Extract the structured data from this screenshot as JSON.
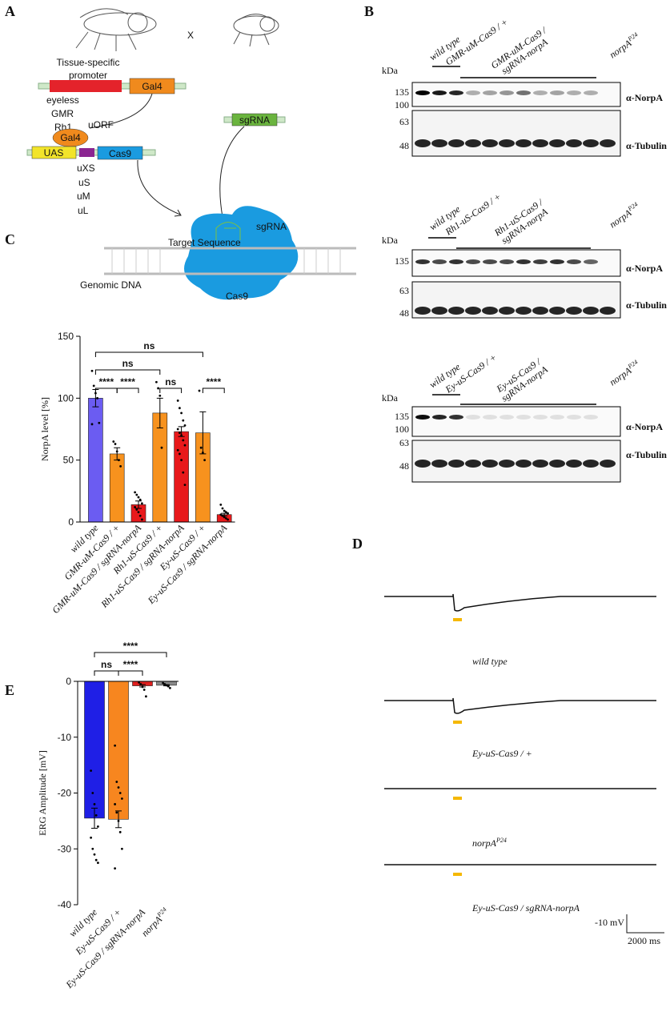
{
  "panels": {
    "a": "A",
    "b": "B",
    "c": "C",
    "d": "D",
    "e": "E"
  },
  "diagram": {
    "cross": "X",
    "promoter": [
      "Tissue-specific",
      "promoter"
    ],
    "gal4_box": "Gal4",
    "drivers": [
      "eyeless",
      "GMR",
      "Rh1"
    ],
    "gal4_protein": "Gal4",
    "uorf": "uORF",
    "uas": "UAS",
    "cas9_box": "Cas9",
    "uorf_sizes": [
      "uXS",
      "uS",
      "uM",
      "uL"
    ],
    "sgrna_box": "sgRNA",
    "sgrna_label": "sgRNA",
    "target": "Target Sequence",
    "genomic": "Genomic DNA",
    "cas9_protein": "Cas9"
  },
  "blots": {
    "kda": "kDa",
    "antibodies": [
      "α-NorpA",
      "α-Tubulin"
    ],
    "panels": [
      {
        "lanes": [
          "wild type",
          "GMR-uM-Cas9 / +",
          [
            "GMR-uM-Cas9 /",
            "sgRNA-norpA"
          ],
          {
            "base": "norpA",
            "sup": "P24"
          }
        ],
        "markers": [
          "135",
          "100",
          "63",
          "48"
        ]
      },
      {
        "lanes": [
          "wild type",
          "Rh1-uS-Cas9 / +",
          [
            "Rh1-uS-Cas9 /",
            "sgRNA-norpA"
          ],
          {
            "base": "norpA",
            "sup": "P24"
          }
        ],
        "markers": [
          "135",
          "63",
          "48"
        ]
      },
      {
        "lanes": [
          "wild type",
          "Ey-uS-Cas9 / +",
          [
            "Ey-uS-Cas9 /",
            "sgRNA-norpA"
          ],
          {
            "base": "norpA",
            "sup": "P24"
          }
        ],
        "markers": [
          "135",
          "100",
          "63",
          "48"
        ]
      }
    ]
  },
  "erg_traces": {
    "labels": [
      "wild type",
      "Ey-uS-Cas9 / +",
      {
        "base": "norpA",
        "sup": "P24"
      },
      "Ey-uS-Cas9 / sgRNA-norpA"
    ],
    "scale_mv": "-10 mV",
    "scale_ms": "2000 ms"
  },
  "chart_data": [
    {
      "type": "bar",
      "y_label": "NorpA level [%]",
      "categories": [
        "wild type",
        "GMR-uM-Cas9 / +",
        "GMR-uM-Cas9 / sgRNA-norpA",
        "Rh1-uS-Cas9 / +",
        "Rh1-uS-Cas9 / sgRNA-norpA",
        "Ey-uS-Cas9 / +",
        "Ey-uS-Cas9 / sgRNA-norpA"
      ],
      "values": [
        100,
        55,
        14,
        88,
        73,
        72,
        6
      ],
      "errors": [
        7,
        5,
        3,
        12,
        4,
        17,
        1
      ],
      "points": [
        [
          122,
          110,
          104,
          100,
          80,
          79
        ],
        [
          65,
          63,
          57,
          50,
          45
        ],
        [
          24,
          22,
          20,
          18,
          15,
          12,
          10,
          8,
          5,
          2
        ],
        [
          113,
          108,
          102,
          60
        ],
        [
          98,
          92,
          88,
          82,
          78,
          75,
          72,
          70,
          66,
          62,
          58,
          55,
          50,
          40,
          30
        ],
        [
          106,
          60,
          56,
          50
        ],
        [
          14,
          11,
          9,
          8,
          7,
          6,
          5,
          4,
          3,
          2
        ]
      ],
      "colors": [
        "#6b5cf2",
        "#f7921e",
        "#e8191b",
        "#f7921e",
        "#e8191b",
        "#f7921e",
        "#e8191b"
      ],
      "ylim": [
        0,
        150
      ],
      "yticks": [
        0,
        50,
        100,
        150
      ],
      "annotations": [
        "****",
        "****",
        "ns",
        "****",
        "ns",
        "ns"
      ]
    },
    {
      "type": "bar",
      "y_label": "ERG Amplitude [mV]",
      "categories": [
        "wild type",
        "Ey-uS-Cas9 / +",
        "Ey-uS-Cas9 / sgRNA-norpA",
        {
          "base": "norpA",
          "sup": "P24"
        }
      ],
      "values": [
        -24.5,
        -24.7,
        -0.8,
        -0.7
      ],
      "errors": [
        1.8,
        1.5,
        0.2,
        0.1
      ],
      "points": [
        [
          -16,
          -20,
          -22,
          -24,
          -26,
          -28,
          -30,
          -31,
          -32,
          -32.5
        ],
        [
          -11.5,
          -18,
          -19,
          -20,
          -21,
          -22,
          -23.5,
          -25,
          -27,
          -30,
          -33.5
        ],
        [
          -0.2,
          -0.5,
          -1,
          -1.5,
          -2.7
        ],
        [
          -0.3,
          -0.5,
          -0.7,
          -0.9,
          -1.2
        ]
      ],
      "colors": [
        "#1f1fe6",
        "#f7861f",
        "#e0201f",
        "#8a8a8a"
      ],
      "ylim": [
        -40,
        0
      ],
      "yticks": [
        0,
        -10,
        -20,
        -30,
        -40
      ],
      "annotations": [
        "ns",
        "****",
        "****"
      ]
    }
  ]
}
